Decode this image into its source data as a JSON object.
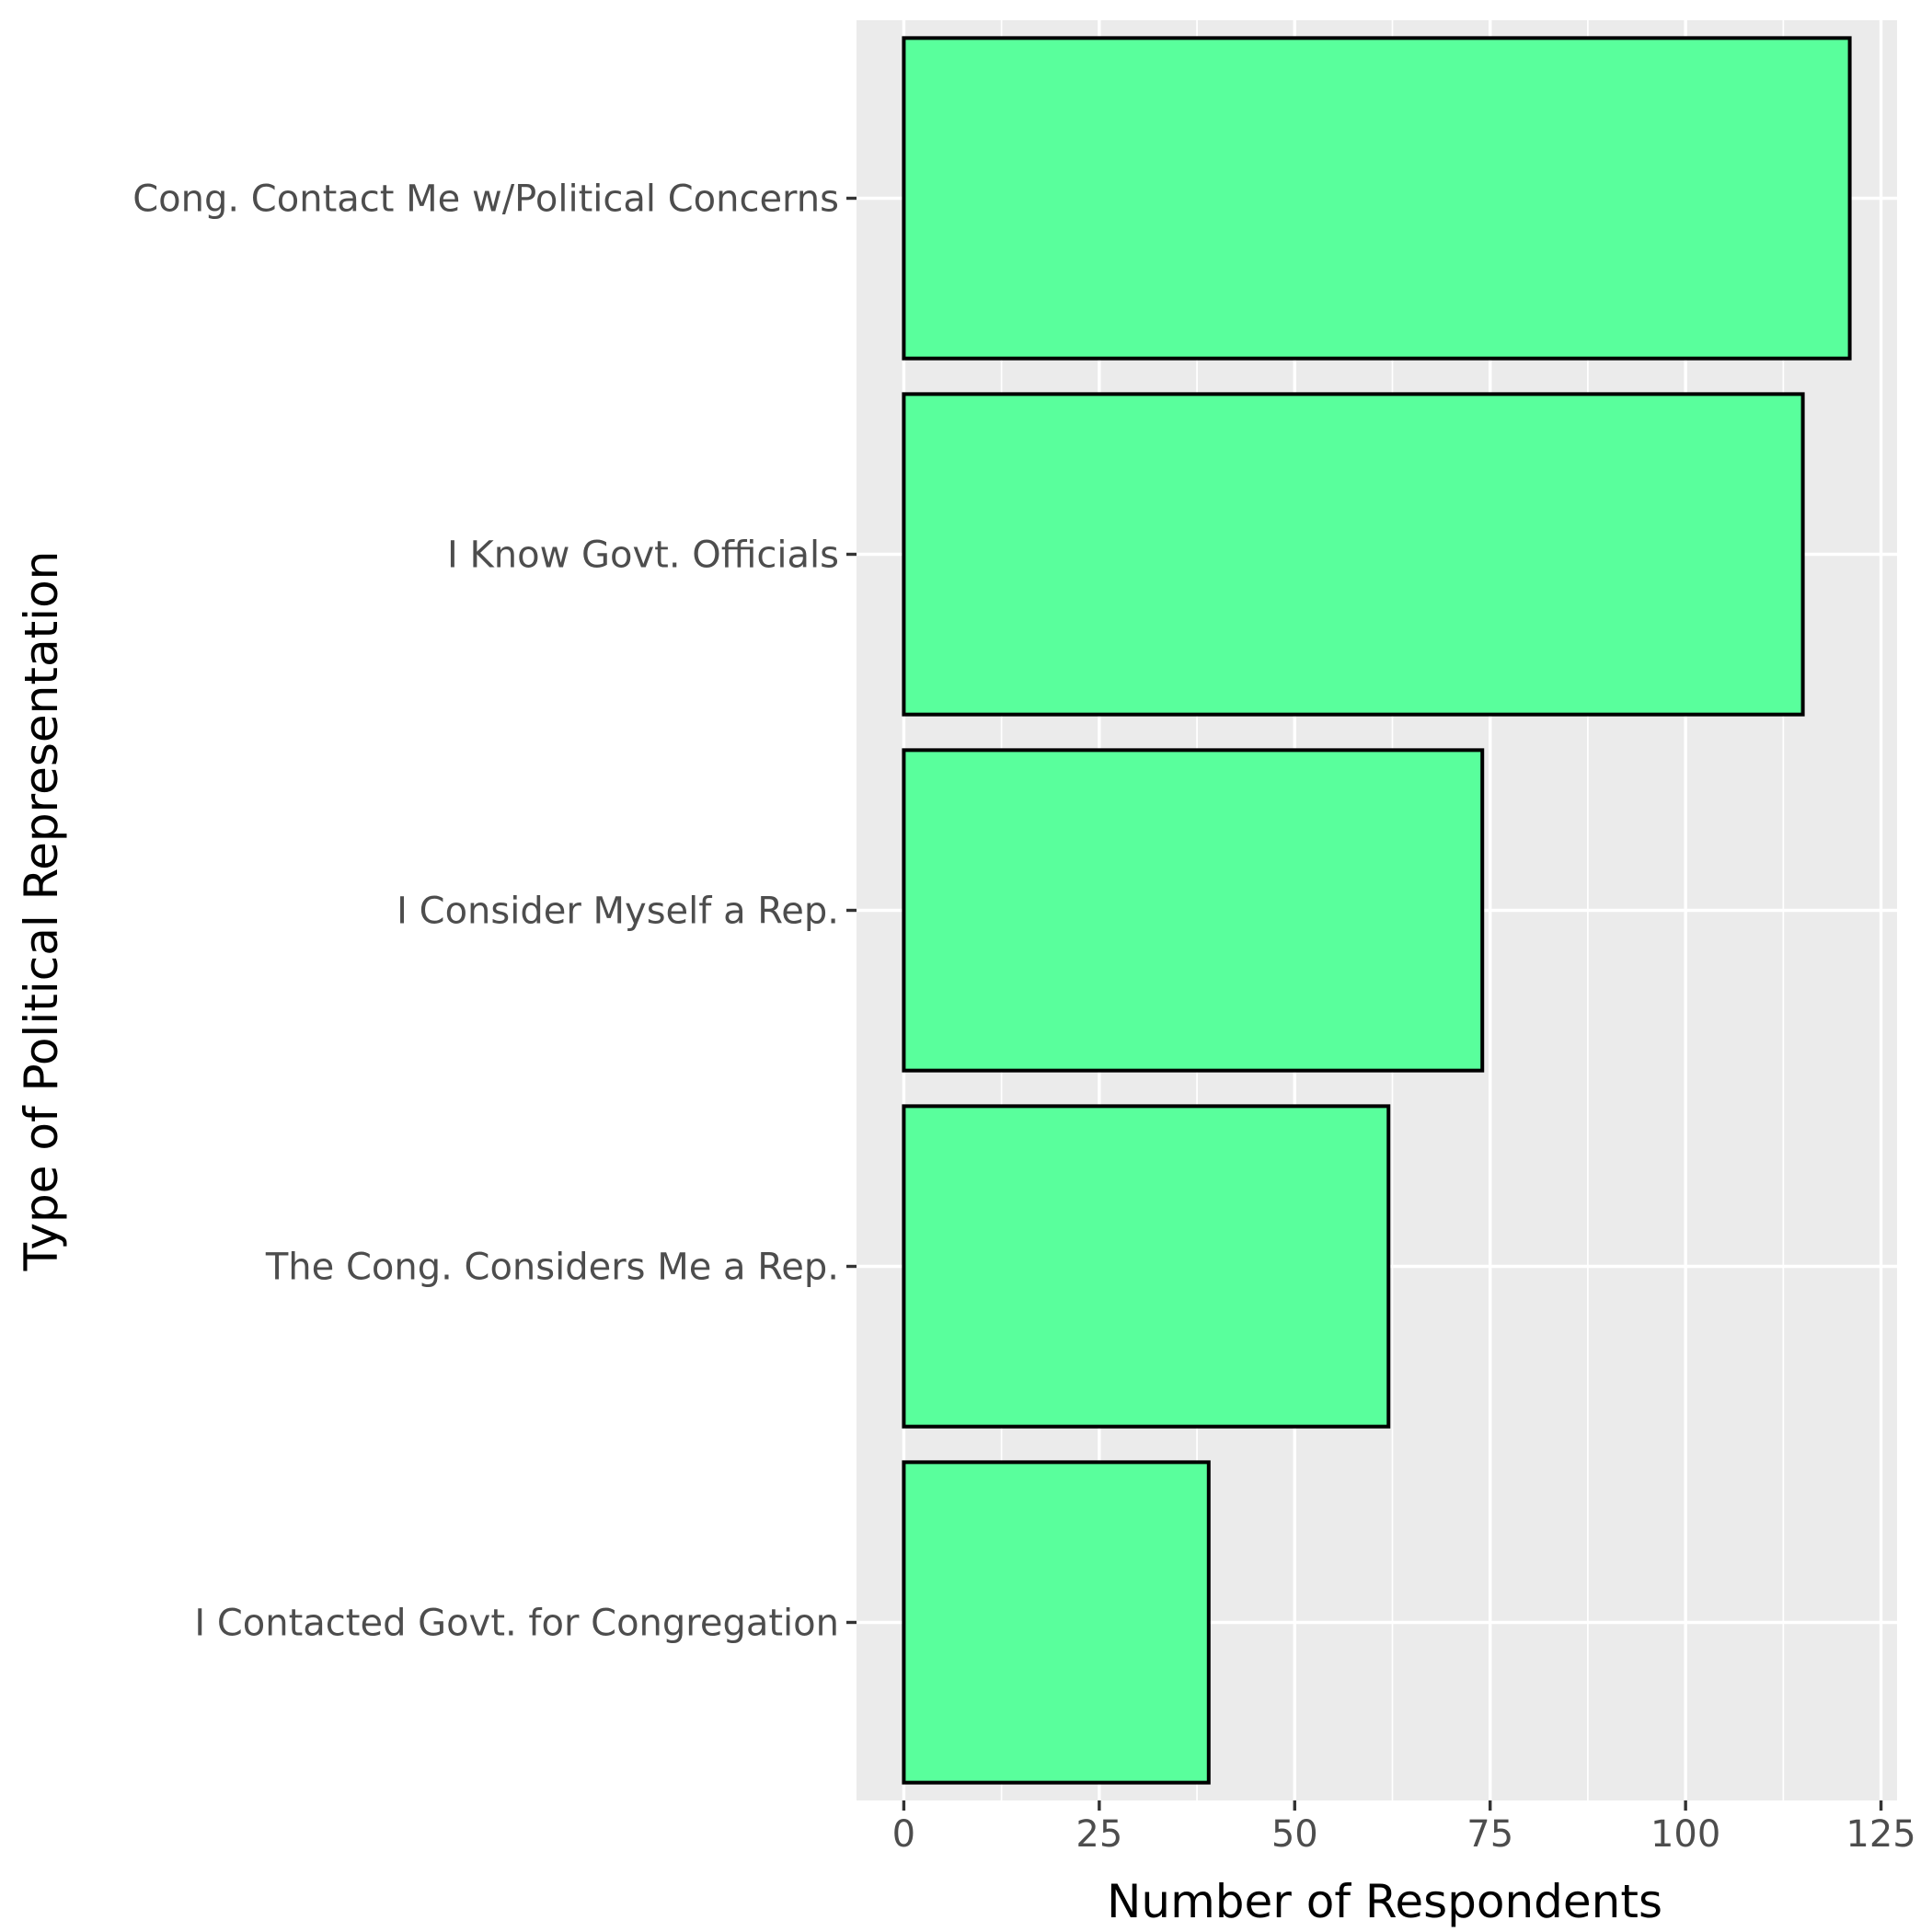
{
  "chart_data": {
    "type": "bar",
    "orientation": "horizontal",
    "categories": [
      "Cong. Contact Me w/Political Concerns",
      "I Know Govt. Officials",
      "I Consider Myself a Rep.",
      "The Cong. Considers Me a Rep.",
      "I Contacted Govt. for Congregation"
    ],
    "values": [
      121,
      115,
      74,
      62,
      39
    ],
    "xlabel": "Number of Respondents",
    "ylabel": "Type of Political Representation",
    "xlim": [
      -6.05,
      127.05
    ],
    "xticks": [
      0,
      25,
      50,
      75,
      100,
      125
    ],
    "grid": true,
    "bar_color": "#59ff9c",
    "bar_edge_color": "#000000",
    "panel_color": "#ebebeb",
    "legend": "none"
  }
}
